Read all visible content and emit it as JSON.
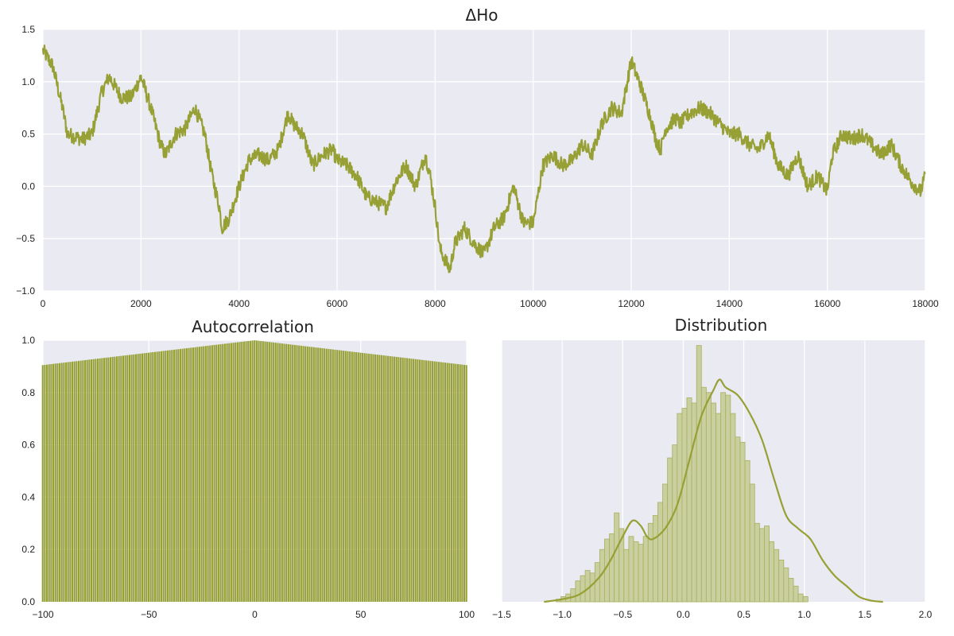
{
  "colors": {
    "series": "#97a034",
    "plot_bg": "#eaeaf2",
    "grid": "#ffffff",
    "hist_fill": "#c9cf9e",
    "hist_edge": "#a9b05e"
  },
  "chart_data": [
    {
      "type": "line",
      "title": "ΔHo",
      "xlim": [
        0,
        18000
      ],
      "ylim": [
        -1.0,
        1.5
      ],
      "xticks": [
        0,
        2000,
        4000,
        6000,
        8000,
        10000,
        12000,
        14000,
        16000,
        18000
      ],
      "yticks": [
        -1.0,
        -0.5,
        0.0,
        0.5,
        1.0,
        1.5
      ],
      "xtick_labels": [
        "0",
        "2000",
        "4000",
        "6000",
        "8000",
        "10000",
        "12000",
        "14000",
        "16000",
        "18000"
      ],
      "ytick_labels": [
        "−1.0",
        "−0.5",
        "0.0",
        "0.5",
        "1.0",
        "1.5"
      ],
      "grid": true,
      "series": [
        {
          "x": [
            0,
            200,
            400,
            500,
            800,
            1000,
            1200,
            1350,
            1600,
            1800,
            2000,
            2200,
            2400,
            2500,
            2700,
            2900,
            3100,
            3300,
            3450,
            3600,
            3650,
            3800,
            4000,
            4200,
            4400,
            4600,
            4800,
            5000,
            5100,
            5300,
            5500,
            5700,
            5900,
            6000,
            6200,
            6400,
            6600,
            6800,
            7000,
            7200,
            7400,
            7600,
            7800,
            7900,
            8000,
            8100,
            8300,
            8400,
            8600,
            8800,
            9000,
            9200,
            9400,
            9600,
            9800,
            10000,
            10200,
            10400,
            10600,
            10800,
            11000,
            11200,
            11400,
            11600,
            11800,
            12000,
            12200,
            12400,
            12500,
            12600,
            12700,
            12900,
            13000,
            13200,
            13400,
            13600,
            13800,
            14000,
            14200,
            14400,
            14600,
            14800,
            15000,
            15200,
            15400,
            15600,
            15800,
            16000,
            16100,
            16300,
            16500,
            16700,
            16900,
            17100,
            17300,
            17500,
            17700,
            17900,
            18000
          ],
          "y": [
            1.3,
            1.15,
            0.75,
            0.5,
            0.45,
            0.5,
            0.9,
            1.05,
            0.85,
            0.85,
            1.05,
            0.75,
            0.4,
            0.3,
            0.5,
            0.55,
            0.75,
            0.5,
            0.1,
            -0.2,
            -0.4,
            -0.3,
            0.0,
            0.25,
            0.3,
            0.25,
            0.35,
            0.7,
            0.6,
            0.5,
            0.2,
            0.3,
            0.35,
            0.25,
            0.2,
            0.1,
            -0.1,
            -0.15,
            -0.2,
            0.05,
            0.2,
            0.0,
            0.3,
            0.1,
            -0.2,
            -0.6,
            -0.8,
            -0.55,
            -0.4,
            -0.55,
            -0.65,
            -0.4,
            -0.3,
            0.0,
            -0.35,
            -0.35,
            0.2,
            0.3,
            0.2,
            0.25,
            0.4,
            0.3,
            0.6,
            0.75,
            0.7,
            1.2,
            0.95,
            0.65,
            0.45,
            0.35,
            0.55,
            0.65,
            0.6,
            0.7,
            0.75,
            0.7,
            0.6,
            0.5,
            0.5,
            0.4,
            0.35,
            0.5,
            0.2,
            0.1,
            0.3,
            0.0,
            0.1,
            -0.05,
            0.3,
            0.5,
            0.45,
            0.5,
            0.4,
            0.3,
            0.4,
            0.2,
            0.05,
            -0.05,
            0.1
          ]
        }
      ]
    },
    {
      "type": "bar",
      "title": "Autocorrelation",
      "xlim": [
        -100,
        100
      ],
      "ylim": [
        0.0,
        1.0
      ],
      "xticks": [
        -100,
        -50,
        0,
        50,
        100
      ],
      "yticks": [
        0.0,
        0.2,
        0.4,
        0.6,
        0.8,
        1.0
      ],
      "xtick_labels": [
        "−100",
        "−50",
        "0",
        "50",
        "100"
      ],
      "ytick_labels": [
        "0.0",
        "0.2",
        "0.4",
        "0.6",
        "0.8",
        "1.0"
      ],
      "lag_range": [
        -100,
        100
      ],
      "peak_value": 1.0,
      "edge_value": 0.905,
      "grid": true
    },
    {
      "type": "histogram",
      "title": "Distribution",
      "xlim": [
        -1.5,
        2.0
      ],
      "xticks": [
        -1.5,
        -1.0,
        -0.5,
        0.0,
        0.5,
        1.0,
        1.5,
        2.0
      ],
      "xtick_labels": [
        "−1.5",
        "−1.0",
        "−0.5",
        "0.0",
        "0.5",
        "1.0",
        "1.5",
        "2.0"
      ],
      "ylim": [
        0.0,
        1.0
      ],
      "bin_start": -1.05,
      "bin_width": 0.04,
      "values": [
        0.01,
        0.02,
        0.03,
        0.05,
        0.08,
        0.1,
        0.12,
        0.11,
        0.15,
        0.2,
        0.24,
        0.26,
        0.34,
        0.28,
        0.2,
        0.25,
        0.23,
        0.22,
        0.25,
        0.3,
        0.33,
        0.38,
        0.45,
        0.55,
        0.6,
        0.72,
        0.74,
        0.78,
        0.76,
        0.98,
        0.82,
        0.8,
        0.76,
        0.72,
        0.8,
        0.79,
        0.72,
        0.63,
        0.61,
        0.54,
        0.45,
        0.3,
        0.28,
        0.29,
        0.23,
        0.2,
        0.16,
        0.13,
        0.09,
        0.06,
        0.03,
        0.02
      ],
      "kde_x": [
        -1.15,
        -1.0,
        -0.85,
        -0.7,
        -0.6,
        -0.5,
        -0.42,
        -0.35,
        -0.3,
        -0.25,
        -0.15,
        -0.05,
        0.05,
        0.15,
        0.25,
        0.3,
        0.35,
        0.45,
        0.55,
        0.65,
        0.75,
        0.85,
        0.95,
        1.05,
        1.15,
        1.25,
        1.35,
        1.45,
        1.55,
        1.65
      ],
      "kde_y": [
        0.0,
        0.01,
        0.03,
        0.09,
        0.16,
        0.25,
        0.31,
        0.29,
        0.25,
        0.24,
        0.28,
        0.37,
        0.54,
        0.71,
        0.81,
        0.85,
        0.82,
        0.79,
        0.72,
        0.62,
        0.47,
        0.33,
        0.28,
        0.24,
        0.16,
        0.1,
        0.06,
        0.02,
        0.005,
        0.0
      ],
      "grid": true
    }
  ]
}
